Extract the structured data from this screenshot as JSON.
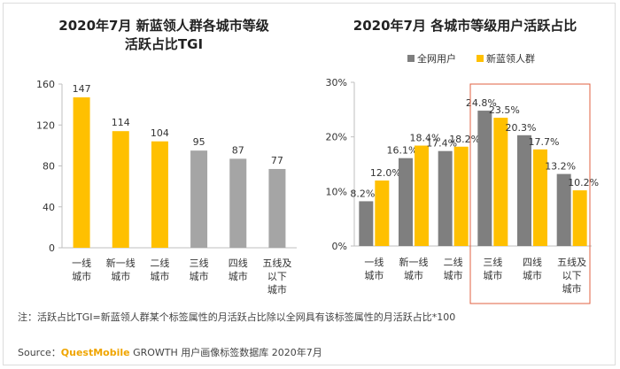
{
  "chart_data": [
    {
      "type": "bar",
      "title_line1": "2020年7月 新蓝领人群各城市等级",
      "title_line2": "活跃占比TGI",
      "categories": [
        [
          "一线",
          "城市"
        ],
        [
          "新一线",
          "城市"
        ],
        [
          "二线",
          "城市"
        ],
        [
          "三线",
          "城市"
        ],
        [
          "四线",
          "城市"
        ],
        [
          "五线及",
          "以下",
          "城市"
        ]
      ],
      "values": [
        147,
        114,
        104,
        95,
        87,
        77
      ],
      "value_labels": [
        "147",
        "114",
        "104",
        "95",
        "87",
        "77"
      ],
      "ylim": [
        0,
        160
      ],
      "yticks": [
        0,
        40,
        80,
        120,
        160
      ],
      "ytick_labels": [
        "0",
        "40",
        "80",
        "120",
        "160"
      ],
      "colors": {
        "highlight": "#FFC000",
        "normal": "#A5A5A5"
      }
    },
    {
      "type": "bar",
      "title": "2020年7月 各城市等级用户活跃占比",
      "categories": [
        [
          "一线",
          "城市"
        ],
        [
          "新一线",
          "城市"
        ],
        [
          "二线",
          "城市"
        ],
        [
          "三线",
          "城市"
        ],
        [
          "四线",
          "城市"
        ],
        [
          "五线及",
          "以下",
          "城市"
        ]
      ],
      "series": [
        {
          "name": "全网用户",
          "values": [
            8.2,
            16.1,
            17.4,
            24.8,
            20.3,
            13.2
          ],
          "labels": [
            "8.2%",
            "16.1%",
            "17.4%",
            "24.8%",
            "20.3%",
            "13.2%"
          ],
          "color": "#7F7F7F"
        },
        {
          "name": "新蓝领人群",
          "values": [
            12.0,
            18.4,
            18.2,
            23.5,
            17.7,
            10.2
          ],
          "labels": [
            "12.0%",
            "18.4%",
            "18.2%",
            "23.5%",
            "17.7%",
            "10.2%"
          ],
          "color": "#FFC000"
        }
      ],
      "ylim": [
        0,
        30
      ],
      "yticks": [
        0,
        10,
        20,
        30
      ],
      "ytick_labels": [
        "0%",
        "10%",
        "20%",
        "30%"
      ],
      "legend": "top-left",
      "highlight_box_color": "#E06040"
    }
  ],
  "note": "注：活跃占比TGI=新蓝领人群某个标签属性的月活跃占比除以全网具有该标签属性的月活跃占比*100",
  "source": {
    "prefix": "Source：",
    "brand": "QuestMobile",
    "rest": " GROWTH 用户画像标签数据库 2020年7月"
  }
}
